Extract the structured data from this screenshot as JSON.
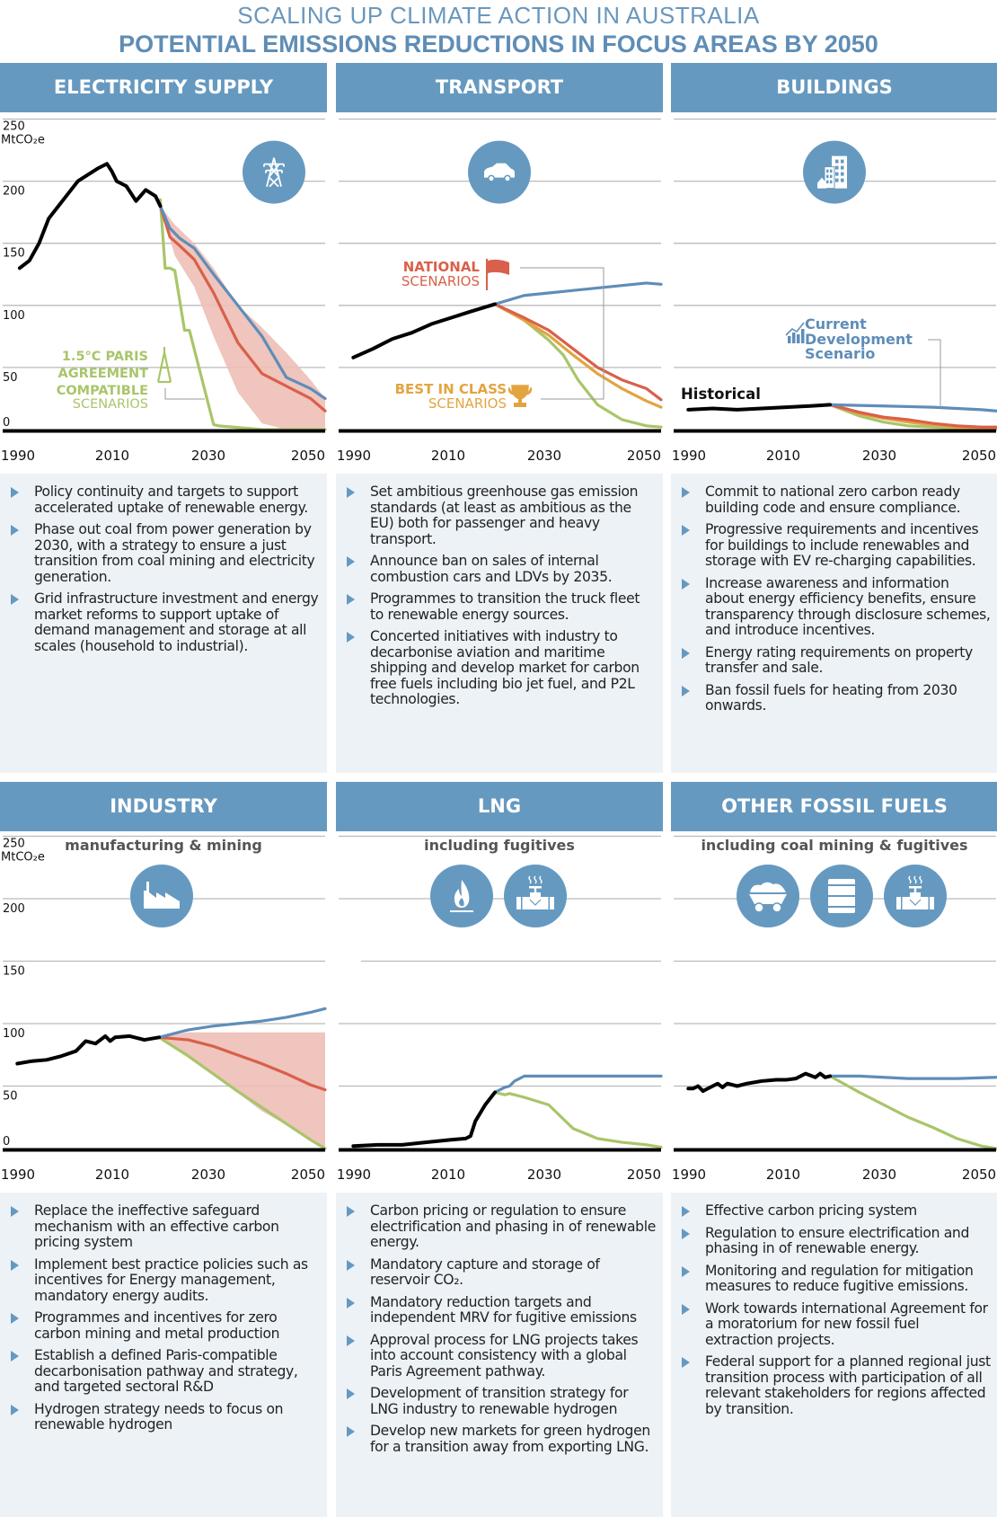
{
  "header": {
    "title": "SCALING UP CLIMATE ACTION IN AUSTRALIA",
    "subtitle": "POTENTIAL EMISSIONS REDUCTIONS IN FOCUS AREAS BY 2050"
  },
  "colors": {
    "header_blue": "#6699bf",
    "historical": "#000000",
    "current_development": "#5f8db8",
    "national": "#d9604a",
    "national_range": "#edbfb6",
    "best_in_class": "#e3a440",
    "paris": "#a9c56a",
    "bullet_bg": "#edf2f7"
  },
  "legend": {
    "paris_line1": "1.5°C PARIS",
    "paris_line2": "AGREEMENT",
    "paris_line3": "COMPATIBLE",
    "paris_line4": "SCENARIOS",
    "national_line1": "NATIONAL",
    "national_line2": "SCENARIOS",
    "best_line1": "BEST IN CLASS",
    "best_line2": "SCENARIOS",
    "current_line1": "Current",
    "current_line2": "Development",
    "current_line3": "Scenario",
    "historical": "Historical"
  },
  "axis": {
    "unit": "MtCO₂e",
    "yticks": [
      "250",
      "200",
      "150",
      "100",
      "50",
      "0"
    ],
    "xticks": [
      "1990",
      "2010",
      "2030",
      "2050"
    ]
  },
  "panels": [
    {
      "title": "ELECTRICITY SUPPLY",
      "subtitle": "",
      "icons": [
        "transmission-tower-icon"
      ],
      "bullets": [
        "Policy continuity and targets to support accelerated uptake of renewable energy.",
        "Phase out coal from power generation by 2030, with a strategy to ensure a just transition from coal mining and electricity generation.",
        "Grid infrastructure investment and energy market reforms to support uptake of demand management and storage at all scales (household to industrial)."
      ]
    },
    {
      "title": "TRANSPORT",
      "subtitle": "",
      "icons": [
        "car-icon"
      ],
      "bullets": [
        "Set ambitious greenhouse gas emission standards (at least as ambitious as the EU) both for passenger and heavy transport.",
        "Announce ban on sales of internal combustion cars and LDVs by 2035.",
        "Programmes to transition the  truck fleet to renewable energy sources.",
        "Concerted initiatives with industry to decarbonise aviation and maritime shipping and develop market for carbon free fuels including bio jet fuel, and P2L technologies."
      ]
    },
    {
      "title": "BUILDINGS",
      "subtitle": "",
      "icons": [
        "buildings-icon"
      ],
      "bullets": [
        "Commit to national zero carbon ready building code and ensure compliance.",
        "Progressive requirements and incentives for buildings to include renewables and storage with EV re-charging capabilities.",
        "Increase awareness and information about energy efficiency benefits, ensure transparency through disclosure schemes, and introduce incentives.",
        "Energy rating requirements on property transfer and sale.",
        "Ban fossil fuels for heating from 2030 onwards."
      ]
    },
    {
      "title": "INDUSTRY",
      "subtitle": "manufacturing & mining",
      "icons": [
        "factory-icon"
      ],
      "bullets": [
        "Replace the ineffective safeguard mechanism with an effective carbon pricing system",
        "Implement best practice policies such as incentives for Energy management, mandatory energy audits.",
        "Programmes and incentives for zero carbon mining and metal production",
        "Establish a defined Paris-compatible decarbonisation pathway and strategy, and targeted  sectoral R&D",
        "Hydrogen strategy needs to focus on renewable hydrogen"
      ]
    },
    {
      "title": "LNG",
      "subtitle": "including fugitives",
      "icons": [
        "gas-flame-icon",
        "pipeline-valve-icon"
      ],
      "bullets": [
        "Carbon pricing or regulation to ensure electrification  and phasing in of renewable energy.",
        "Mandatory capture and storage of reservoir CO₂.",
        "Mandatory reduction targets and independent MRV for fugitive emissions",
        "Approval process for LNG projects takes into account consistency with a global Paris Agreement pathway.",
        "Development of transition strategy for LNG industry to renewable hydrogen",
        "Develop new markets for  green hydrogen for a transition away from exporting LNG."
      ]
    },
    {
      "title": "OTHER FOSSIL FUELS",
      "subtitle": "including coal mining & fugitives",
      "icons": [
        "coal-cart-icon",
        "oil-barrel-icon",
        "pipeline-valve-icon"
      ],
      "bullets": [
        "Effective carbon pricing system",
        "Regulation to ensure electrification and phasing in of renewable energy.",
        "Monitoring and regulation for mitigation measures to reduce fugitive emissions.",
        "Work towards international Agreement for a moratorium for new fossil fuel extraction projects.",
        "Federal support for a planned regional just transition process with participation of all relevant stakeholders for regions affected by transition."
      ]
    }
  ],
  "chart_data": [
    {
      "type": "line",
      "title": "ELECTRICITY SUPPLY",
      "ylabel": "MtCO₂e",
      "xlim": [
        1990,
        2050
      ],
      "ylim": [
        0,
        250
      ],
      "series": [
        {
          "name": "Historical",
          "x": [
            1990,
            1992,
            1994,
            1996,
            1998,
            2000,
            2002,
            2004,
            2006,
            2008,
            2009,
            2010,
            2012,
            2014,
            2016,
            2018,
            2019
          ],
          "y": [
            130,
            136,
            150,
            170,
            180,
            190,
            200,
            205,
            210,
            214,
            208,
            200,
            196,
            184,
            193,
            188,
            180
          ]
        },
        {
          "name": "Current Development Scenario",
          "x": [
            2019,
            2021,
            2023,
            2026,
            2030,
            2035,
            2040,
            2045,
            2050,
            2053
          ],
          "y": [
            180,
            162,
            154,
            146,
            125,
            100,
            75,
            42,
            33,
            25
          ]
        },
        {
          "name": "National Scenarios (central)",
          "x": [
            2019,
            2021,
            2023,
            2026,
            2030,
            2035,
            2040,
            2045,
            2050,
            2053
          ],
          "y": [
            180,
            155,
            148,
            137,
            110,
            70,
            45,
            35,
            25,
            15
          ]
        },
        {
          "name": "National Scenarios range upper",
          "x": [
            2019,
            2022,
            2026,
            2030,
            2035,
            2040,
            2045,
            2050,
            2053
          ],
          "y": [
            180,
            165,
            150,
            130,
            100,
            82,
            62,
            40,
            25
          ]
        },
        {
          "name": "National Scenarios range lower",
          "x": [
            2019,
            2022,
            2026,
            2030,
            2035,
            2040,
            2045,
            2050,
            2053
          ],
          "y": [
            180,
            140,
            115,
            75,
            30,
            5,
            0,
            0,
            0
          ]
        },
        {
          "name": "1.5°C Paris Agreement compatible",
          "x": [
            2019,
            2020,
            2021,
            2022,
            2024,
            2025,
            2030,
            2031,
            2040,
            2053
          ],
          "y": [
            185,
            130,
            130,
            128,
            80,
            80,
            4,
            3,
            0,
            0
          ]
        }
      ]
    },
    {
      "type": "line",
      "title": "TRANSPORT",
      "ylabel": "MtCO₂e",
      "xlim": [
        1990,
        2050
      ],
      "ylim": [
        0,
        250
      ],
      "series": [
        {
          "name": "Historical",
          "x": [
            1990,
            1994,
            1998,
            2002,
            2006,
            2010,
            2014,
            2019
          ],
          "y": [
            58,
            65,
            73,
            78,
            85,
            90,
            95,
            101
          ]
        },
        {
          "name": "Current Development Scenario",
          "x": [
            2019,
            2025,
            2030,
            2035,
            2040,
            2045,
            2050,
            2053
          ],
          "y": [
            101,
            108,
            110,
            112,
            114,
            116,
            118,
            117
          ]
        },
        {
          "name": "National Scenarios",
          "x": [
            2019,
            2025,
            2030,
            2035,
            2040,
            2045,
            2050,
            2053
          ],
          "y": [
            101,
            90,
            80,
            65,
            50,
            40,
            33,
            24
          ]
        },
        {
          "name": "Best in Class Scenarios",
          "x": [
            2019,
            2025,
            2030,
            2035,
            2040,
            2045,
            2050,
            2053
          ],
          "y": [
            101,
            88,
            76,
            60,
            45,
            33,
            23,
            18
          ]
        },
        {
          "name": "1.5°C Paris Agreement compatible",
          "x": [
            2019,
            2025,
            2030,
            2033,
            2036,
            2040,
            2045,
            2050,
            2053
          ],
          "y": [
            101,
            88,
            72,
            60,
            40,
            20,
            8,
            3,
            2
          ]
        }
      ]
    },
    {
      "type": "line",
      "title": "BUILDINGS",
      "ylabel": "MtCO₂e",
      "xlim": [
        1990,
        2050
      ],
      "ylim": [
        0,
        250
      ],
      "series": [
        {
          "name": "Historical",
          "x": [
            1990,
            1995,
            2000,
            2005,
            2010,
            2015,
            2019
          ],
          "y": [
            16,
            17,
            16,
            17,
            18,
            19,
            20
          ]
        },
        {
          "name": "Current Development Scenario",
          "x": [
            2019,
            2030,
            2040,
            2050,
            2053
          ],
          "y": [
            20,
            19,
            18,
            16,
            15
          ]
        },
        {
          "name": "National Scenarios",
          "x": [
            2019,
            2025,
            2030,
            2035,
            2040,
            2045,
            2050,
            2053
          ],
          "y": [
            20,
            14,
            10,
            8,
            5,
            3,
            2,
            2
          ]
        },
        {
          "name": "Best in Class Scenarios",
          "x": [
            2019,
            2025,
            2030,
            2035,
            2040,
            2045,
            2050,
            2053
          ],
          "y": [
            20,
            13,
            9,
            6,
            4,
            2,
            1,
            1
          ]
        },
        {
          "name": "1.5°C Paris Agreement compatible",
          "x": [
            2019,
            2025,
            2030,
            2035,
            2040,
            2045,
            2050,
            2053
          ],
          "y": [
            20,
            11,
            6,
            3,
            2,
            1,
            0,
            0
          ]
        }
      ]
    },
    {
      "type": "line",
      "title": "INDUSTRY",
      "subtitle": "manufacturing & mining",
      "ylabel": "MtCO₂e",
      "xlim": [
        1990,
        2050
      ],
      "ylim": [
        0,
        250
      ],
      "series": [
        {
          "name": "Historical",
          "x": [
            1990,
            1993,
            1996,
            1999,
            2002,
            2004,
            2006,
            2008,
            2009,
            2010,
            2013,
            2016,
            2019
          ],
          "y": [
            68,
            70,
            71,
            74,
            78,
            86,
            84,
            90,
            86,
            89,
            90,
            87,
            89
          ]
        },
        {
          "name": "Current Development Scenario",
          "x": [
            2019,
            2025,
            2030,
            2035,
            2040,
            2045,
            2050,
            2053
          ],
          "y": [
            89,
            95,
            98,
            100,
            102,
            105,
            109,
            112
          ]
        },
        {
          "name": "National Scenarios (central)",
          "x": [
            2019,
            2025,
            2030,
            2035,
            2040,
            2045,
            2050,
            2053
          ],
          "y": [
            89,
            87,
            82,
            75,
            68,
            60,
            51,
            47
          ]
        },
        {
          "name": "National Scenarios range upper",
          "x": [
            2019,
            2025,
            2053
          ],
          "y": [
            89,
            93,
            93
          ]
        },
        {
          "name": "National Scenarios range lower",
          "x": [
            2019,
            2030,
            2040,
            2050,
            2053
          ],
          "y": [
            89,
            60,
            30,
            8,
            0
          ]
        },
        {
          "name": "1.5°C Paris Agreement compatible",
          "x": [
            2019,
            2025,
            2030,
            2035,
            2040,
            2045,
            2050,
            2053
          ],
          "y": [
            89,
            74,
            60,
            46,
            33,
            20,
            7,
            0
          ]
        }
      ]
    },
    {
      "type": "line",
      "title": "LNG",
      "subtitle": "including fugitives",
      "ylabel": "MtCO₂e",
      "xlim": [
        1990,
        2050
      ],
      "ylim": [
        0,
        250
      ],
      "series": [
        {
          "name": "Historical",
          "x": [
            1990,
            1995,
            2000,
            2005,
            2010,
            2013,
            2014,
            2015,
            2017,
            2019
          ],
          "y": [
            2,
            3,
            3,
            5,
            7,
            8,
            10,
            22,
            35,
            45
          ]
        },
        {
          "name": "Current Development Scenario",
          "x": [
            2019,
            2021,
            2022,
            2023,
            2024,
            2025,
            2053
          ],
          "y": [
            45,
            49,
            50,
            54,
            56,
            58,
            58
          ]
        },
        {
          "name": "1.5°C Paris Agreement compatible",
          "x": [
            2019,
            2021,
            2022,
            2025,
            2030,
            2035,
            2040,
            2045,
            2050,
            2053
          ],
          "y": [
            45,
            43,
            44,
            41,
            35,
            16,
            8,
            5,
            3,
            1
          ]
        }
      ]
    },
    {
      "type": "line",
      "title": "OTHER FOSSIL FUELS",
      "subtitle": "including coal mining & fugitives",
      "ylabel": "MtCO₂e",
      "xlim": [
        1990,
        2050
      ],
      "ylim": [
        0,
        250
      ],
      "series": [
        {
          "name": "Historical",
          "x": [
            1990,
            1991,
            1992,
            1993,
            1994,
            1996,
            1997,
            1998,
            2000,
            2002,
            2005,
            2008,
            2010,
            2012,
            2014,
            2016,
            2017,
            2018,
            2019
          ],
          "y": [
            48,
            48,
            50,
            46,
            48,
            52,
            49,
            52,
            50,
            52,
            54,
            55,
            55,
            56,
            60,
            57,
            60,
            57,
            58
          ]
        },
        {
          "name": "Current Development Scenario",
          "x": [
            2019,
            2025,
            2030,
            2035,
            2040,
            2045,
            2053
          ],
          "y": [
            58,
            58,
            57,
            56,
            56,
            56,
            57
          ]
        },
        {
          "name": "1.5°C Paris Agreement compatible",
          "x": [
            2019,
            2025,
            2030,
            2035,
            2040,
            2045,
            2050,
            2053
          ],
          "y": [
            58,
            45,
            35,
            25,
            17,
            8,
            2,
            0
          ]
        }
      ]
    }
  ]
}
